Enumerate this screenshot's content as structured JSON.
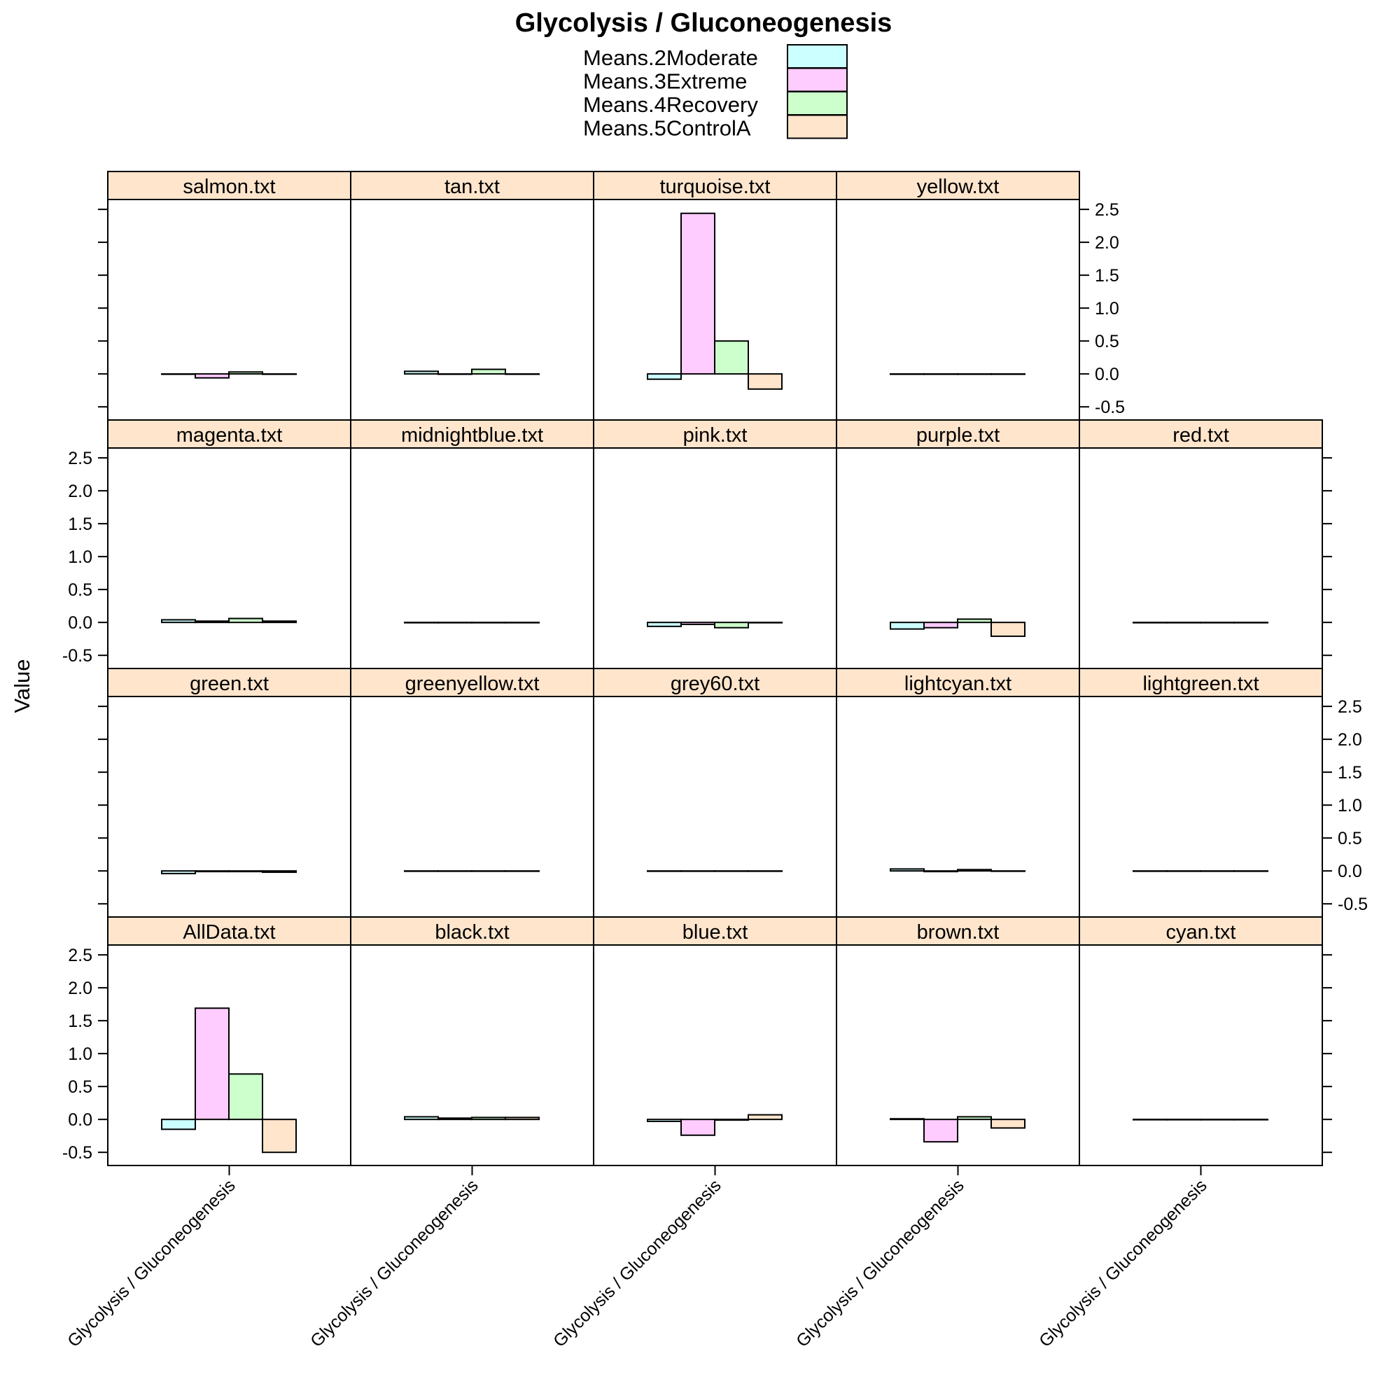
{
  "chart_data": {
    "type": "bar",
    "title": "Glycolysis / Gluconeogenesis",
    "ylabel": "Value",
    "xlabel": "",
    "category": "Glycolysis / Gluconeogenesis",
    "ylim": [
      -0.7,
      2.65
    ],
    "yticks": [
      -0.5,
      0.0,
      0.5,
      1.0,
      1.5,
      2.0,
      2.5
    ],
    "ytick_labels": [
      "-0.5",
      "0.0",
      "0.5",
      "1.0",
      "1.5",
      "2.0",
      "2.5"
    ],
    "legend_placement": "top",
    "series": [
      {
        "name": "Means.2Moderate",
        "color": "#ccffff"
      },
      {
        "name": "Means.3Extreme",
        "color": "#ffccff"
      },
      {
        "name": "Means.4Recovery",
        "color": "#ccffcc"
      },
      {
        "name": "Means.5ControlA",
        "color": "#ffe5cc"
      }
    ],
    "strip_color": "#ffe5cc",
    "rows": [
      [
        {
          "label": "salmon.txt",
          "values": [
            0.0,
            -0.06,
            0.03,
            0.0
          ]
        },
        {
          "label": "tan.txt",
          "values": [
            0.04,
            0.0,
            0.07,
            0.0
          ]
        },
        {
          "label": "turquoise.txt",
          "values": [
            -0.08,
            2.44,
            0.5,
            -0.23
          ]
        },
        {
          "label": "yellow.txt",
          "values": [
            0.0,
            0.0,
            0.0,
            0.0
          ]
        }
      ],
      [
        {
          "label": "magenta.txt",
          "values": [
            0.04,
            0.02,
            0.06,
            0.02
          ]
        },
        {
          "label": "midnightblue.txt",
          "values": [
            0.0,
            0.0,
            0.0,
            0.0
          ]
        },
        {
          "label": "pink.txt",
          "values": [
            -0.06,
            -0.03,
            -0.08,
            0.0
          ]
        },
        {
          "label": "purple.txt",
          "values": [
            -0.1,
            -0.08,
            0.05,
            -0.21
          ]
        },
        {
          "label": "red.txt",
          "values": [
            0.0,
            0.0,
            0.0,
            0.0
          ]
        }
      ],
      [
        {
          "label": "green.txt",
          "values": [
            -0.04,
            -0.01,
            -0.01,
            -0.02
          ]
        },
        {
          "label": "greenyellow.txt",
          "values": [
            0.0,
            0.0,
            0.0,
            0.0
          ]
        },
        {
          "label": "grey60.txt",
          "values": [
            0.0,
            0.0,
            0.0,
            0.0
          ]
        },
        {
          "label": "lightcyan.txt",
          "values": [
            0.03,
            -0.01,
            0.02,
            0.0
          ]
        },
        {
          "label": "lightgreen.txt",
          "values": [
            0.0,
            0.0,
            0.0,
            0.0
          ]
        }
      ],
      [
        {
          "label": "AllData.txt",
          "values": [
            -0.15,
            1.69,
            0.69,
            -0.5
          ]
        },
        {
          "label": "black.txt",
          "values": [
            0.04,
            0.02,
            0.03,
            0.03
          ]
        },
        {
          "label": "blue.txt",
          "values": [
            -0.03,
            -0.24,
            -0.01,
            0.07
          ]
        },
        {
          "label": "brown.txt",
          "values": [
            0.01,
            -0.34,
            0.04,
            -0.13
          ]
        },
        {
          "label": "cyan.txt",
          "values": [
            0.0,
            0.0,
            0.0,
            0.0
          ]
        }
      ]
    ]
  }
}
